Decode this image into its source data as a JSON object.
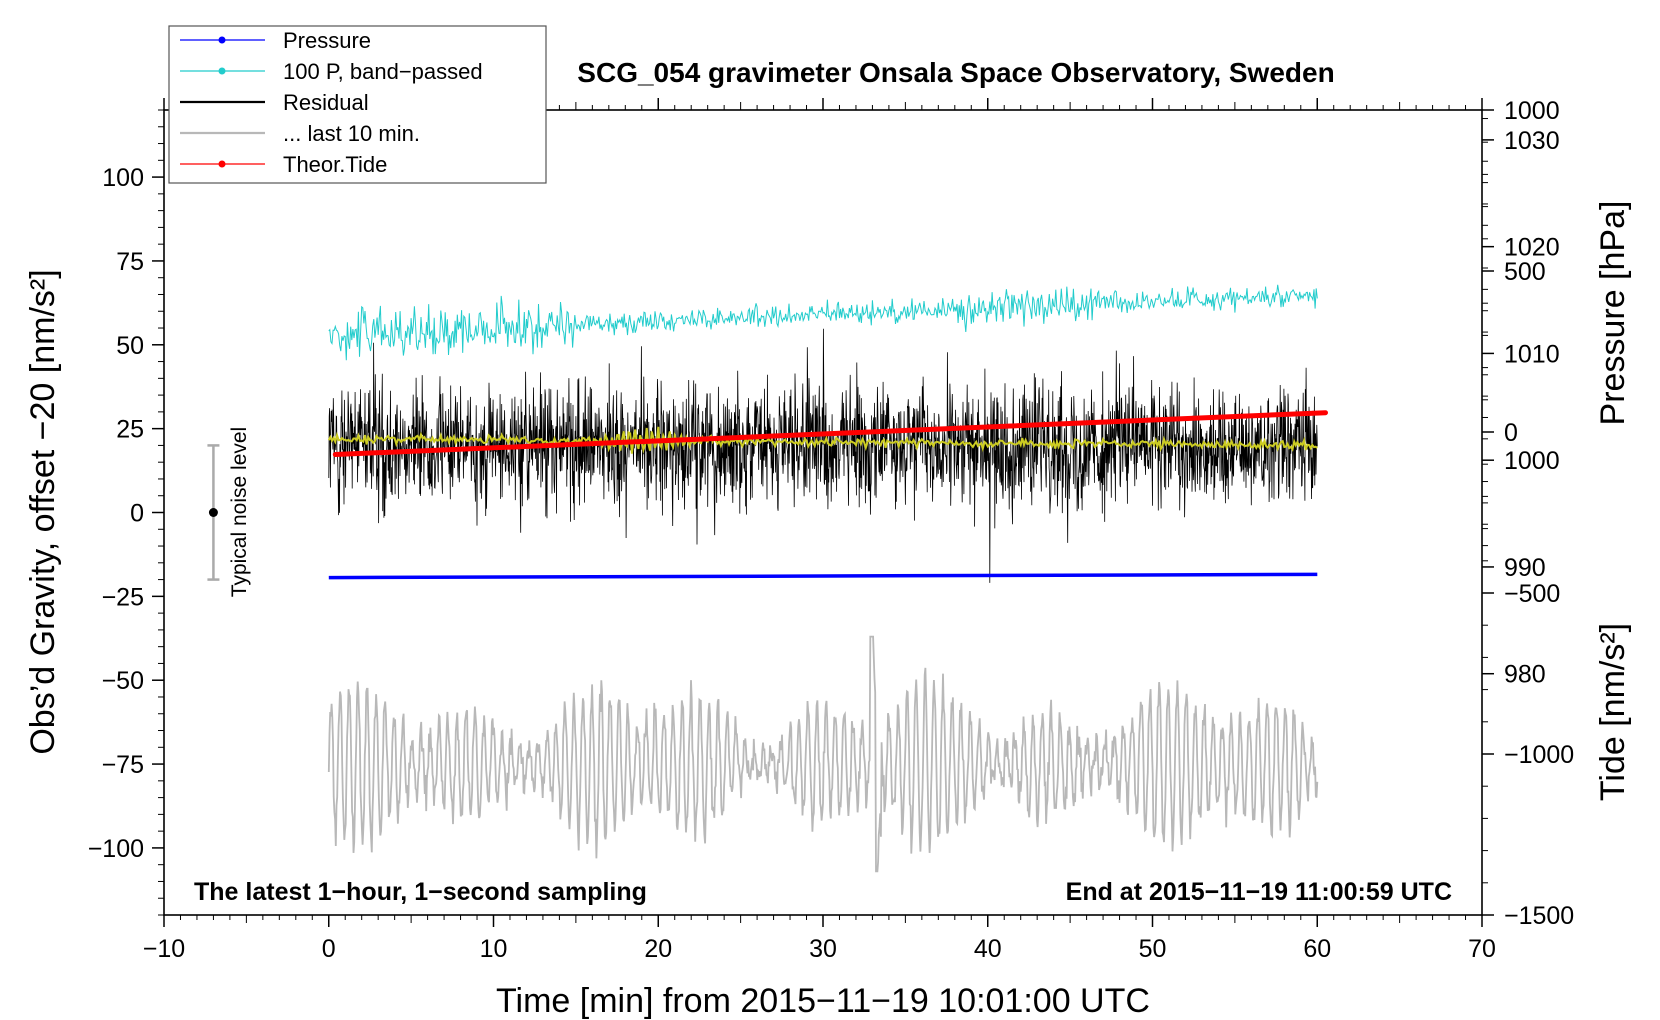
{
  "chart_data": {
    "type": "line",
    "title": "SCG_054 gravimeter Onsala Space Observatory, Sweden",
    "xlabel": "Time [min] from 2015−11−19 10:01:00 UTC",
    "ylabel_left": "Obs’d Gravity, offset −20 [nm/s²]",
    "ylabel_right_top": "Pressure [hPa]",
    "ylabel_right_bottom": "Tide [nm/s²]",
    "xlim": [
      -10,
      70
    ],
    "ylim_left": [
      -120,
      120
    ],
    "ylim_pressure": [
      957.4,
      1032.8
    ],
    "ylim_tide": [
      -1500,
      1000
    ],
    "x_ticks": [
      -10,
      0,
      10,
      20,
      30,
      40,
      50,
      60,
      70
    ],
    "x_tick_labels": [
      "−10",
      "0",
      "10",
      "20",
      "30",
      "40",
      "50",
      "60",
      "70"
    ],
    "y_left_ticks": [
      -100,
      -75,
      -50,
      -25,
      0,
      25,
      50,
      75,
      100
    ],
    "y_left_tick_labels": [
      "−100",
      "−75",
      "−50",
      "−25",
      "0",
      "25",
      "50",
      "75",
      "100"
    ],
    "pressure_ticks": [
      980,
      990,
      1000,
      1010,
      1020,
      1030
    ],
    "pressure_tick_labels": [
      "980",
      "990",
      "1000",
      "1010",
      "1020",
      "1030"
    ],
    "tide_ticks": [
      -1500,
      -1000,
      -500,
      0,
      500,
      1000
    ],
    "tide_tick_labels": [
      "−1500",
      "−1000",
      "−500",
      "0",
      "500",
      "1000"
    ],
    "legend": {
      "position": "top-left",
      "entries": [
        {
          "label": "Pressure",
          "color": "#0000ff",
          "marker": true
        },
        {
          "label": "100 P, band−passed",
          "color": "#22cccc",
          "marker": true
        },
        {
          "label": "Residual",
          "color": "#000000",
          "marker": false
        },
        {
          "label": "... last 10 min.",
          "color": "#b8b8b8",
          "marker": false
        },
        {
          "label": "Theor.Tide",
          "color": "#ff0000",
          "marker": true
        }
      ]
    },
    "annotations": {
      "bottom_left": "The latest 1−hour, 1−second sampling",
      "bottom_right": "End at 2015−11−19 11:00:59 UTC",
      "noise_label": "Typical noise level",
      "noise_bar": {
        "x": -7,
        "center": 0,
        "half_range": 20
      }
    },
    "series": [
      {
        "name": "Pressure",
        "axis": "pressure",
        "color": "#0000ff",
        "x_range": [
          0,
          60
        ],
        "start": 989.0,
        "end": 989.3
      },
      {
        "name": "100 P, band−passed",
        "axis": "left",
        "color": "#22cccc",
        "x_range": [
          0,
          60
        ],
        "start": 53,
        "end": 65
      },
      {
        "name": "Residual",
        "axis": "left",
        "color": "#000000",
        "x_range": [
          0,
          60
        ],
        "mean": 20,
        "min": -21,
        "max": 57
      },
      {
        "name": "Residual (smoothed)",
        "axis": "left",
        "color": "#cccc22",
        "x_range": [
          0,
          60
        ],
        "start": 22,
        "end": 20
      },
      {
        "name": "... last 10 min.",
        "axis": "left",
        "color": "#b8b8b8",
        "x_range": [
          0,
          60
        ],
        "mean": -75,
        "min": -107,
        "max": -37
      },
      {
        "name": "Theor.Tide",
        "axis": "tide",
        "color": "#ff0000",
        "x_range": [
          0,
          60.5
        ],
        "start": -70,
        "end": 60
      }
    ]
  }
}
